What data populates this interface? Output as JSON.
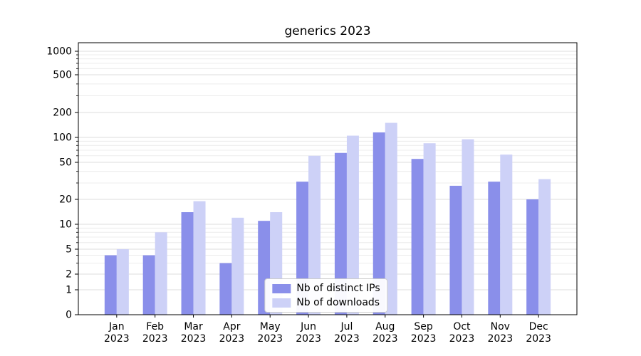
{
  "title": "generics 2023",
  "chart_data": {
    "type": "bar",
    "title": "generics 2023",
    "categories": [
      "Jan",
      "Feb",
      "Mar",
      "Apr",
      "May",
      "Jun",
      "Jul",
      "Aug",
      "Sep",
      "Oct",
      "Nov",
      "Dec"
    ],
    "category_year": "2023",
    "series": [
      {
        "name": "Nb of distinct IPs",
        "color": "#8a8fea",
        "values": [
          4,
          4,
          14,
          3,
          11,
          31,
          65,
          115,
          55,
          28,
          31,
          20
        ]
      },
      {
        "name": "Nb of downloads",
        "color": "#cdd1f7",
        "values": [
          5,
          8,
          19,
          12,
          14,
          60,
          105,
          150,
          85,
          95,
          62,
          33
        ]
      }
    ],
    "yscale": "symlog",
    "yticks": [
      0,
      1,
      2,
      5,
      10,
      20,
      50,
      100,
      200,
      500,
      1000
    ],
    "ylim": [
      0,
      1300
    ],
    "grid": true,
    "legend_position": "lower center",
    "colors": {
      "axis": "#000000",
      "grid_major": "#dedede",
      "grid_minor": "#ececec",
      "background": "#ffffff"
    }
  }
}
